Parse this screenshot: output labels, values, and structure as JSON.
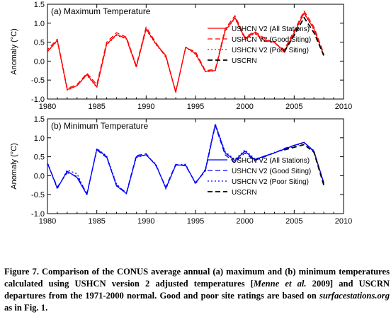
{
  "chart_data": [
    {
      "type": "line",
      "title": "(a) Maximum Temperature",
      "ylabel": "Anomaly (°C)",
      "xlim": [
        1980,
        2010
      ],
      "ylim": [
        -1.0,
        1.5
      ],
      "x_ticks": [
        1980,
        1985,
        1990,
        1995,
        2000,
        2005,
        2010
      ],
      "y_ticks": [
        -1.0,
        -0.5,
        0.0,
        0.5,
        1.0,
        1.5
      ],
      "legend_position": "right",
      "colors": {
        "series": "#ff0000",
        "uscrn": "#000000"
      },
      "series": [
        {
          "name": "USHCN V2 (All Stations)",
          "style": "solid",
          "x": [
            1979,
            1980,
            1981,
            1982,
            1983,
            1984,
            1985,
            1986,
            1987,
            1988,
            1989,
            1990,
            1991,
            1992,
            1993,
            1994,
            1995,
            1996,
            1997,
            1998,
            1999,
            2000,
            2001,
            2002,
            2003,
            2004,
            2005,
            2006,
            2007,
            2008
          ],
          "values": [
            0.15,
            0.25,
            0.55,
            -0.75,
            -0.65,
            -0.35,
            -0.68,
            0.45,
            0.7,
            0.6,
            -0.15,
            0.85,
            0.45,
            0.15,
            -0.82,
            0.37,
            0.2,
            -0.27,
            -0.25,
            0.8,
            1.15,
            0.6,
            0.75,
            0.55,
            0.5,
            0.25,
            0.75,
            1.27,
            0.85,
            0.15
          ]
        },
        {
          "name": "USHCN V2 (Good Siting)",
          "style": "dashed",
          "x": [
            1979,
            1980,
            1981,
            1982,
            1983,
            1984,
            1985,
            1986,
            1987,
            1988,
            1989,
            1990,
            1991,
            1992,
            1993,
            1994,
            1995,
            1996,
            1997,
            1998,
            1999,
            2000,
            2001,
            2002,
            2003,
            2004,
            2005,
            2006,
            2007,
            2008
          ],
          "values": [
            0.2,
            0.3,
            0.58,
            -0.72,
            -0.62,
            -0.32,
            -0.62,
            0.5,
            0.75,
            0.63,
            -0.12,
            0.9,
            0.48,
            0.1,
            -0.8,
            0.35,
            0.25,
            -0.25,
            -0.22,
            0.85,
            1.2,
            0.63,
            0.78,
            0.6,
            0.48,
            0.3,
            0.8,
            1.32,
            0.9,
            0.2
          ]
        },
        {
          "name": "USHCN V2 (Poor Siting)",
          "style": "dotted",
          "x": [
            1979,
            1980,
            1981,
            1982,
            1983,
            1984,
            1985,
            1986,
            1987,
            1988,
            1989,
            1990,
            1991,
            1992,
            1993,
            1994,
            1995,
            1996,
            1997,
            1998,
            1999,
            2000,
            2001,
            2002,
            2003,
            2004,
            2005,
            2006,
            2007,
            2008
          ],
          "values": [
            0.15,
            0.25,
            0.53,
            -0.77,
            -0.65,
            -0.37,
            -0.7,
            0.43,
            0.68,
            0.58,
            -0.17,
            0.83,
            0.43,
            0.13,
            -0.84,
            0.36,
            0.18,
            -0.28,
            -0.26,
            0.78,
            1.13,
            0.58,
            0.73,
            0.53,
            0.49,
            0.23,
            0.73,
            1.25,
            0.83,
            0.13
          ]
        },
        {
          "name": "USCRN",
          "style": "dashed-black",
          "x": [
            2004,
            2005,
            2006,
            2007,
            2008
          ],
          "values": [
            0.25,
            0.68,
            1.15,
            0.75,
            0.15
          ]
        }
      ]
    },
    {
      "type": "line",
      "title": "(b) Minimum Temperature",
      "ylabel": "Anomaly (°C)",
      "xlim": [
        1980,
        2010
      ],
      "ylim": [
        -1.0,
        1.5
      ],
      "x_ticks": [
        1980,
        1985,
        1990,
        1995,
        2000,
        2005,
        2010
      ],
      "y_ticks": [
        -1.0,
        -0.5,
        0.0,
        0.5,
        1.0,
        1.5
      ],
      "legend_position": "right",
      "colors": {
        "series": "#0000ff",
        "uscrn": "#000000"
      },
      "series": [
        {
          "name": "USHCN V2 (All Stations)",
          "style": "solid",
          "x": [
            1979,
            1980,
            1981,
            1982,
            1983,
            1984,
            1985,
            1986,
            1987,
            1988,
            1989,
            1990,
            1991,
            1992,
            1993,
            1994,
            1995,
            1996,
            1997,
            1998,
            1999,
            2000,
            2001,
            2002,
            2003,
            2004,
            2005,
            2006,
            2007,
            2008
          ],
          "values": [
            -0.2,
            0.33,
            -0.33,
            0.12,
            -0.05,
            -0.5,
            0.7,
            0.5,
            -0.27,
            -0.47,
            0.5,
            0.55,
            0.28,
            -0.33,
            0.28,
            0.28,
            -0.2,
            0.15,
            1.35,
            0.6,
            0.4,
            0.65,
            0.42,
            0.52,
            0.6,
            0.7,
            0.8,
            0.88,
            0.65,
            -0.2
          ]
        },
        {
          "name": "USHCN V2 (Good Siting)",
          "style": "dashed",
          "x": [
            1979,
            1980,
            1981,
            1982,
            1983,
            1984,
            1985,
            1986,
            1987,
            1988,
            1989,
            1990,
            1991,
            1992,
            1993,
            1994,
            1995,
            1996,
            1997,
            1998,
            1999,
            2000,
            2001,
            2002,
            2003,
            2004,
            2005,
            2006,
            2007,
            2008
          ],
          "values": [
            -0.18,
            0.33,
            -0.3,
            0.08,
            -0.02,
            -0.47,
            0.68,
            0.48,
            -0.25,
            -0.45,
            0.53,
            0.58,
            0.26,
            -0.3,
            0.3,
            0.26,
            -0.18,
            0.12,
            1.32,
            0.55,
            0.35,
            0.6,
            0.4,
            0.5,
            0.6,
            0.72,
            0.8,
            0.88,
            0.63,
            -0.18
          ]
        },
        {
          "name": "USHCN V2 (Poor Siting)",
          "style": "dotted",
          "x": [
            1979,
            1980,
            1981,
            1982,
            1983,
            1984,
            1985,
            1986,
            1987,
            1988,
            1989,
            1990,
            1991,
            1992,
            1993,
            1994,
            1995,
            1996,
            1997,
            1998,
            1999,
            2000,
            2001,
            2002,
            2003,
            2004,
            2005,
            2006,
            2007,
            2008
          ],
          "values": [
            -0.2,
            0.35,
            -0.35,
            0.15,
            0.05,
            -0.5,
            0.72,
            0.52,
            -0.22,
            -0.48,
            0.48,
            0.55,
            0.3,
            -0.35,
            0.28,
            0.3,
            -0.22,
            0.18,
            1.37,
            0.63,
            0.43,
            0.68,
            0.45,
            0.5,
            0.62,
            0.68,
            0.78,
            0.87,
            0.66,
            -0.22
          ]
        },
        {
          "name": "USCRN",
          "style": "dashed-black",
          "x": [
            2004,
            2005,
            2006,
            2007,
            2008
          ],
          "values": [
            0.68,
            0.75,
            0.82,
            0.62,
            -0.25
          ]
        }
      ]
    }
  ],
  "caption": {
    "lead": "Figure 7. Comparison of the CONUS average annual (a) maximum and (b) minimum temperatures calculated using USHCN version 2 adjusted temperatures [",
    "cite_name": "Menne et al.",
    "cite_year": " 2009] and USCRN departures from the 1971-2000 normal.  Good and poor site ratings are based on ",
    "site": "surfacestations.org",
    "tail": " as in Fig. 1."
  }
}
